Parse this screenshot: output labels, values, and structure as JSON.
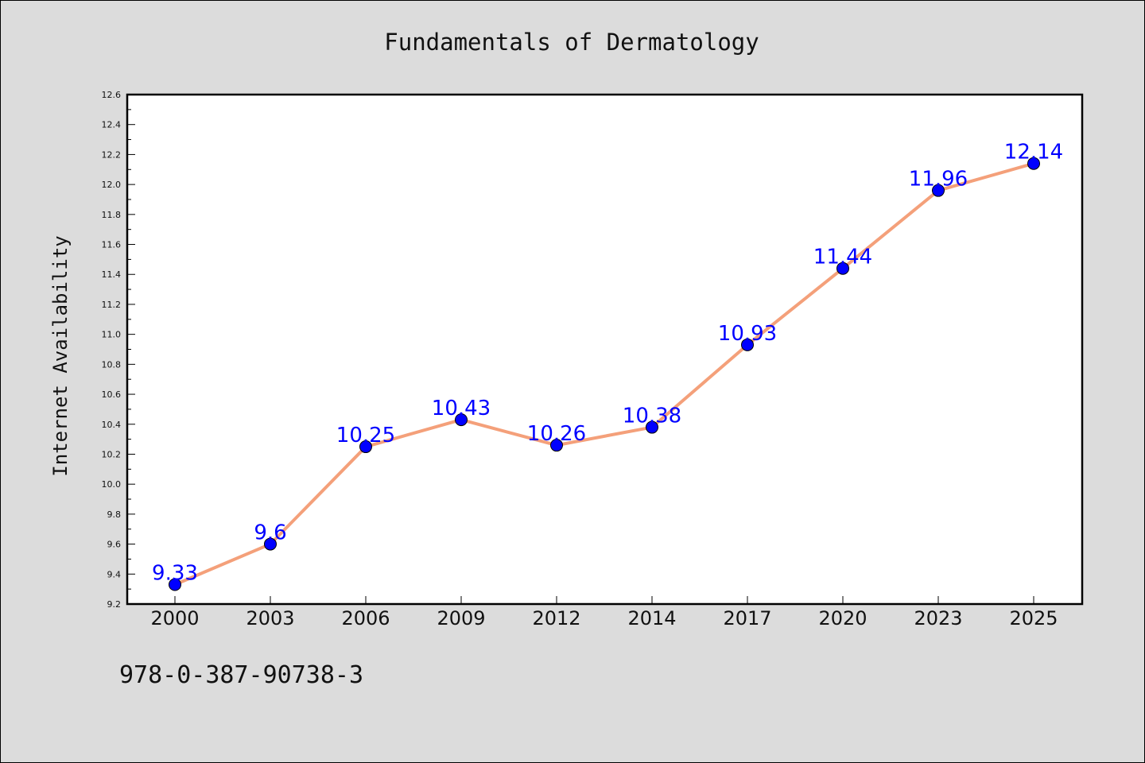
{
  "chart_data": {
    "type": "line",
    "title": "Fundamentals of Dermatology",
    "xlabel": "",
    "ylabel": "Internet Availability",
    "categories": [
      "2000",
      "2003",
      "2006",
      "2009",
      "2012",
      "2014",
      "2017",
      "2020",
      "2023",
      "2025"
    ],
    "series": [
      {
        "values": [
          9.33,
          9.6,
          10.25,
          10.43,
          10.26,
          10.38,
          10.93,
          11.44,
          11.96,
          12.14
        ],
        "data_labels": [
          "9.33",
          "9.6",
          "10.25",
          "10.43",
          "10.26",
          "10.38",
          "10.93",
          "11.44",
          "11.96",
          "12.14"
        ],
        "line_color": "#f4a07a",
        "marker_color": "#0000ff"
      }
    ],
    "ylim": [
      9.2,
      12.6
    ],
    "yticks": [
      "9.2",
      "9.4",
      "9.6",
      "9.8",
      "10.0",
      "10.2",
      "10.4",
      "10.6",
      "10.8",
      "11.0",
      "11.2",
      "11.4",
      "11.6",
      "11.8",
      "12.0",
      "12.2",
      "12.4",
      "12.6"
    ],
    "grid": false,
    "legend": "none"
  },
  "footer": {
    "isbn": "978-0-387-90738-3"
  },
  "colors": {
    "background": "#dcdcdc",
    "plot_background": "#ffffff",
    "line": "#f4a07a",
    "marker": "#0000ff",
    "label": "#0000ff"
  }
}
